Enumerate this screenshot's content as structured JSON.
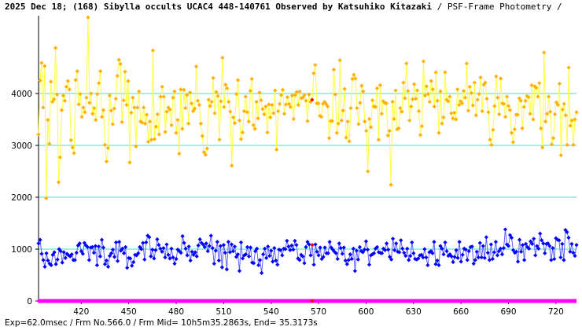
{
  "title": {
    "main": "2025 Dec 18; (168) Sibylla occults UCAC4 448-140761 Observed by Katsuhiko Kitazaki",
    "suffix": "/ PSF-Frame Photometry /"
  },
  "footer": "Exp=62.0msec / Frm No.566.0 / Frm Mid= 10h5m35.2863s,  End= 35.3173s",
  "chart_data": {
    "type": "scatter",
    "x_range": [
      393,
      733
    ],
    "ylim": [
      0,
      5500
    ],
    "x_ticks": [
      420,
      450,
      480,
      510,
      540,
      570,
      600,
      630,
      660,
      690,
      720
    ],
    "y_ticks": [
      0,
      1000,
      2000,
      3000,
      4000
    ],
    "gridlines_y": [
      1000,
      2000,
      3000,
      4000
    ],
    "grid_color": "#40e0d0",
    "highlight_frame": 566,
    "highlight_color": "#ff0000",
    "series": [
      {
        "color": "#ffb000",
        "line_color": "#ffff40",
        "values": [
          3210,
          4250,
          4590,
          3730,
          4530,
          1980,
          3490,
          3030,
          4230,
          3840,
          3890,
          4880,
          3980,
          2290,
          2770,
          3680,
          3960,
          3860,
          4130,
          4240,
          4080,
          3100,
          2960,
          2850,
          4260,
          4430,
          3790,
          3990,
          3550,
          3730,
          3640,
          3920,
          5470,
          3820,
          4000,
          3610,
          3720,
          3490,
          3990,
          4200,
          4430,
          3550,
          3680,
          3010,
          2690,
          2950,
          3960,
          3670,
          3410,
          3710,
          3900,
          4340,
          4650,
          4570,
          3450,
          3870,
          4420,
          3780,
          4240,
          2670,
          3630,
          3920,
          3730,
          2980,
          3730,
          4040,
          3460,
          3440,
          3730,
          3420,
          3590,
          3070,
          3460,
          3110,
          4830,
          3120,
          3360,
          3600,
          3210,
          3940,
          4130,
          3940,
          3260,
          3650,
          3730,
          3690,
          3390,
          3920,
          4040,
          3240,
          3490,
          2840,
          4080,
          3320,
          4070,
          3720,
          3970,
          3420,
          4020,
          3810,
          3660,
          3710,
          4520,
          3860,
          3780,
          3420,
          3180,
          2870,
          2820,
          2940,
          3880,
          3760,
          3840,
          4300,
          3620,
          4030,
          3950,
          3110,
          3850,
          4690,
          3740,
          4170,
          4100,
          3840,
          3650,
          2610,
          3540,
          3430,
          3990,
          4260,
          3480,
          3120,
          3250,
          3660,
          3940,
          3640,
          3460,
          4050,
          4280,
          3390,
          3320,
          3840,
          3520,
          4020,
          3870,
          3700,
          3600,
          3750,
          3250,
          3790,
          3540,
          3780,
          3620,
          4060,
          2920,
          3660,
          3800,
          3970,
          4070,
          3610,
          3790,
          3930,
          3800,
          3740,
          3960,
          3510,
          3970,
          4030,
          3780,
          4040,
          3910,
          3920,
          3970,
          3860,
          3470,
          3980,
          3840,
          3880,
          4390,
          4550,
          3810,
          3810,
          3570,
          3550,
          3800,
          3840,
          3800,
          3750,
          3140,
          3470,
          3470,
          4460,
          3980,
          3240,
          3420,
          4640,
          3480,
          3670,
          4090,
          3150,
          3460,
          3080,
          3720,
          4280,
          4360,
          4290,
          3720,
          3410,
          3820,
          4150,
          4040,
          3460,
          3280,
          2500,
          3510,
          3350,
          3870,
          3750,
          3740,
          4100,
          3110,
          4160,
          3610,
          3850,
          3820,
          3810,
          3190,
          3280,
          2240,
          3840,
          3510,
          4060,
          3310,
          3330,
          3720,
          3650,
          4210,
          3910,
          4580,
          4050,
          3480,
          3750,
          3890,
          4180,
          3900,
          4060,
          3660,
          3200,
          3370,
          4620,
          3960,
          4140,
          3990,
          3840,
          4240,
          4080,
          3750,
          4410,
          3860,
          3240,
          4040,
          3420,
          3540,
          4410,
          3880,
          3850,
          3940,
          3620,
          3520,
          3630,
          3500,
          4080,
          3780,
          3850,
          3810,
          4050,
          3920,
          4580,
          3670,
          4130,
          4010,
          3770,
          4210,
          3580,
          3880,
          3990,
          4310,
          3660,
          4170,
          4210,
          3900,
          3640,
          3110,
          3010,
          3300,
          3760,
          4330,
          3920,
          3600,
          4290,
          3810,
          3800,
          3550,
          3940,
          3760,
          3680,
          3240,
          3060,
          3310,
          3590,
          3590,
          3910,
          3860,
          3330,
          3740,
          3860,
          3950,
          3930,
          3610,
          4160,
          3500,
          4140,
          4110,
          3940,
          4200,
          3330,
          2960,
          4790,
          3460,
          3610,
          3940,
          3650,
          3020,
          3140,
          3600,
          3830,
          3780,
          4190,
          2810,
          3690,
          3800,
          3580,
          3010,
          4500,
          3380,
          3480,
          3010,
          3500,
          3640
        ]
      },
      {
        "color": "#0000ff",
        "line_color": "#6060ff",
        "values": [
          1110,
          1180,
          910,
          790,
          660,
          920,
          780,
          720,
          690,
          890,
          940,
          710,
          800,
          1000,
          960,
          740,
          940,
          830,
          910,
          880,
          860,
          900,
          790,
          790,
          930,
          1070,
          1110,
          960,
          910,
          1120,
          1070,
          1040,
          790,
          1030,
          1040,
          930,
          1060,
          690,
          1050,
          860,
          1180,
          1030,
          710,
          780,
          660,
          870,
          920,
          990,
          850,
          1130,
          770,
          1140,
          970,
          1010,
          920,
          1040,
          640,
          830,
          820,
          680,
          750,
          890,
          880,
          920,
          1040,
          1000,
          1120,
          800,
          1130,
          1260,
          1230,
          860,
          990,
          820,
          980,
          1190,
          1080,
          1010,
          950,
          1020,
          840,
          1090,
          890,
          820,
          1010,
          840,
          720,
          810,
          990,
          960,
          930,
          1250,
          1120,
          1010,
          880,
          1050,
          780,
          950,
          890,
          940,
          860,
          1070,
          1190,
          1120,
          1090,
          1040,
          1110,
          960,
          1060,
          1260,
          1020,
          720,
          970,
          1140,
          780,
          1060,
          650,
          1080,
          930,
          610,
          1140,
          940,
          1090,
          960,
          1050,
          850,
          900,
          580,
          1130,
          820,
          880,
          900,
          1040,
          860,
          1030,
          740,
          730,
          960,
          1010,
          690,
          790,
          540,
          900,
          1010,
          830,
          1050,
          870,
          970,
          760,
          1020,
          780,
          700,
          990,
          980,
          880,
          1010,
          1000,
          1160,
          1050,
          980,
          1070,
          990,
          1160,
          1080,
          820,
          790,
          890,
          860,
          730,
          1040,
          1140,
          1090,
          880,
          1080,
          700,
          1090,
          950,
          880,
          1030,
          810,
          850,
          1030,
          920,
          920,
          1140,
          1030,
          990,
          950,
          920,
          810,
          1110,
          1020,
          910,
          1030,
          780,
          710,
          790,
          900,
          810,
          1010,
          580,
          970,
          800,
          1040,
          960,
          940,
          990,
          1150,
          990,
          700,
          880,
          900,
          920,
          1010,
          1040,
          940,
          930,
          920,
          1010,
          980,
          1110,
          990,
          850,
          800,
          1200,
          980,
          1110,
          950,
          940,
          1170,
          1010,
          930,
          870,
          1010,
          790,
          870,
          1130,
          920,
          810,
          800,
          820,
          880,
          890,
          840,
          1000,
          840,
          690,
          940,
          960,
          920,
          1140,
          710,
          780,
          690,
          1060,
          1010,
          900,
          1130,
          960,
          870,
          900,
          860,
          750,
          850,
          980,
          830,
          1140,
          760,
          890,
          1010,
          990,
          790,
          960,
          1040,
          1050,
          720,
          790,
          950,
          840,
          1120,
          840,
          1060,
          830,
          1230,
          930,
          790,
          1090,
          810,
          940,
          1140,
          880,
          960,
          1010,
          900,
          1020,
          1380,
          1090,
          1060,
          1270,
          1220,
          980,
          930,
          950,
          760,
          1180,
          950,
          1080,
          790,
          1100,
          1040,
          1010,
          1150,
          1100,
          1200,
          880,
          1060,
          1010,
          1300,
          1170,
          1110,
          920,
          1100,
          1110,
          1060,
          790,
          1020,
          810,
          1210,
          1180,
          1170,
          840,
          1100,
          790,
          1370,
          1330,
          1220,
          950,
          1100,
          930,
          870,
          1080
        ]
      },
      {
        "color": "#ff00ff",
        "line_color": "#ff00ff",
        "values": [
          0
        ]
      }
    ]
  }
}
